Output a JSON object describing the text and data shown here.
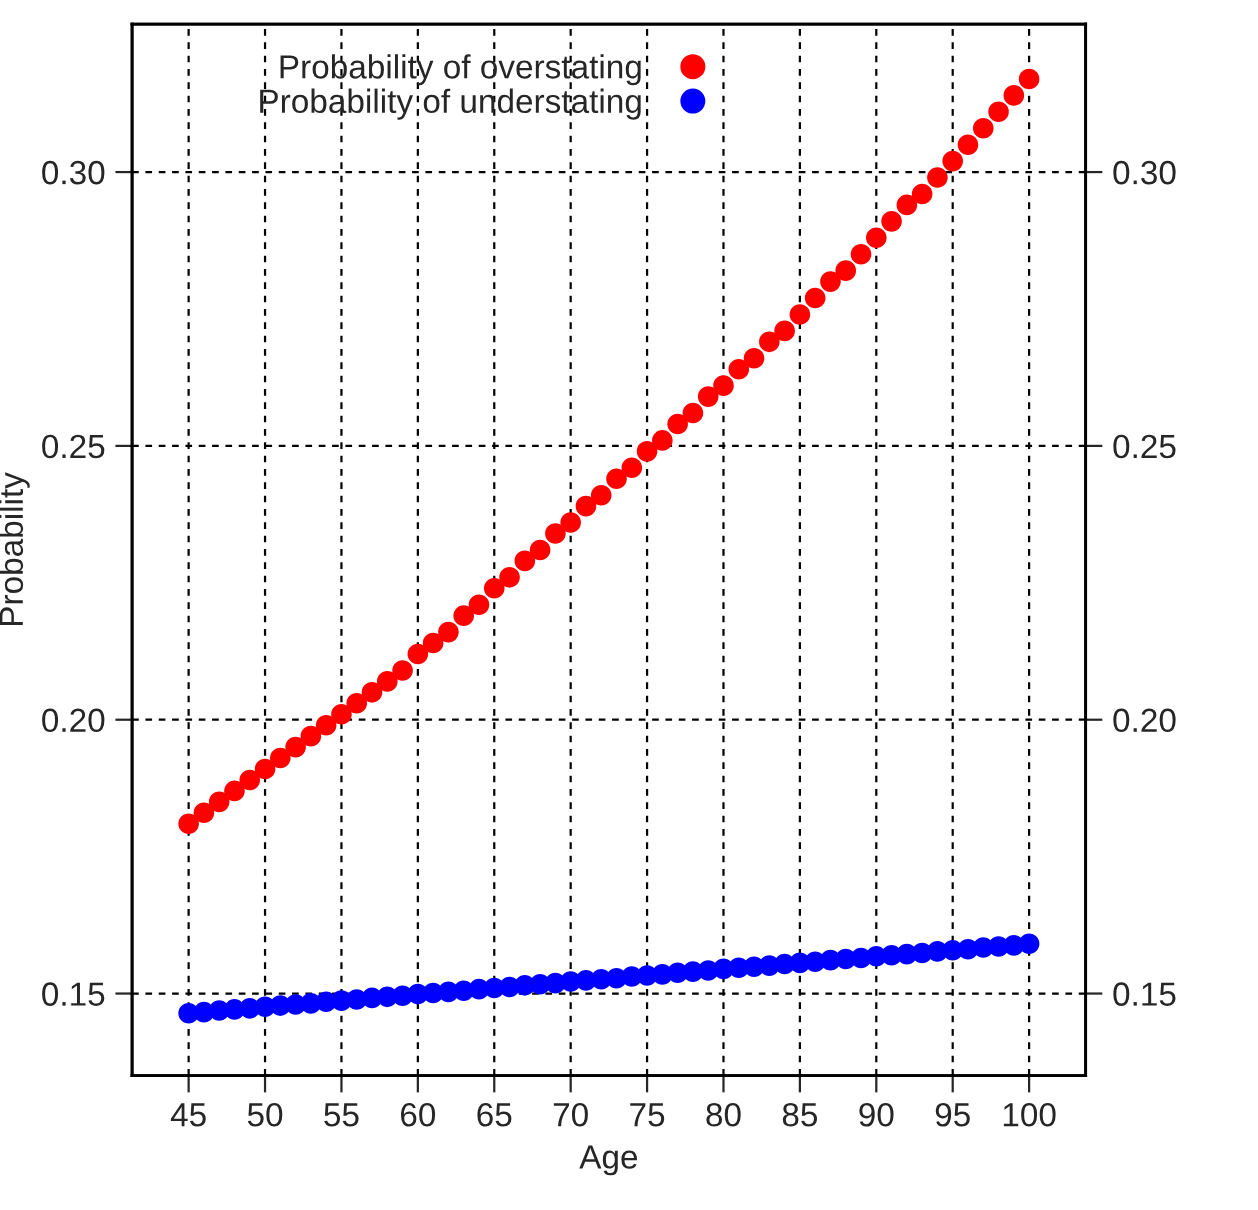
{
  "chart_data": {
    "type": "scatter",
    "xlabel": "Age",
    "ylabel": "Probability",
    "x": [
      45,
      46,
      47,
      48,
      49,
      50,
      51,
      52,
      53,
      54,
      55,
      56,
      57,
      58,
      59,
      60,
      61,
      62,
      63,
      64,
      65,
      66,
      67,
      68,
      69,
      70,
      71,
      72,
      73,
      74,
      75,
      76,
      77,
      78,
      79,
      80,
      81,
      82,
      83,
      84,
      85,
      86,
      87,
      88,
      89,
      90,
      91,
      92,
      93,
      94,
      95,
      96,
      97,
      98,
      99,
      100
    ],
    "series": [
      {
        "name": "Probability of overstating",
        "color": "#ff0000",
        "values": [
          0.181,
          0.183,
          0.185,
          0.187,
          0.189,
          0.191,
          0.193,
          0.195,
          0.197,
          0.199,
          0.201,
          0.203,
          0.205,
          0.207,
          0.209,
          0.212,
          0.214,
          0.216,
          0.219,
          0.221,
          0.224,
          0.226,
          0.229,
          0.231,
          0.234,
          0.236,
          0.239,
          0.241,
          0.244,
          0.246,
          0.249,
          0.251,
          0.254,
          0.256,
          0.259,
          0.261,
          0.264,
          0.266,
          0.269,
          0.271,
          0.274,
          0.277,
          0.28,
          0.282,
          0.285,
          0.288,
          0.291,
          0.294,
          0.296,
          0.299,
          0.302,
          0.305,
          0.308,
          0.311,
          0.314,
          0.317
        ]
      },
      {
        "name": "Probability of understating",
        "color": "#0000ff",
        "values": [
          0.1464,
          0.1466,
          0.1469,
          0.1471,
          0.1473,
          0.1476,
          0.1478,
          0.148,
          0.1482,
          0.1485,
          0.1487,
          0.1489,
          0.1492,
          0.1494,
          0.1496,
          0.1499,
          0.1501,
          0.1503,
          0.1505,
          0.1508,
          0.151,
          0.1512,
          0.1515,
          0.1517,
          0.1519,
          0.1522,
          0.1524,
          0.1526,
          0.1528,
          0.1531,
          0.1533,
          0.1535,
          0.1538,
          0.154,
          0.1542,
          0.1545,
          0.1547,
          0.1549,
          0.1551,
          0.1554,
          0.1556,
          0.1558,
          0.1561,
          0.1563,
          0.1565,
          0.1568,
          0.157,
          0.1572,
          0.1574,
          0.1577,
          0.1579,
          0.1581,
          0.1584,
          0.1586,
          0.1588,
          0.1591
        ]
      }
    ],
    "xlim": [
      41.3,
      103.7
    ],
    "xticks": [
      45,
      50,
      55,
      60,
      65,
      70,
      75,
      80,
      85,
      90,
      95,
      100
    ],
    "ylim": [
      0.135,
      0.327
    ],
    "yticks": [
      0.15,
      {
        "value": 0.2,
        "label": "0.20"
      },
      {
        "value": 0.25,
        "label": "0.25"
      },
      {
        "value": 0.3,
        "label": "0.30"
      }
    ],
    "y2lim": [
      0.135,
      0.327
    ],
    "y2ticks": [
      0.15,
      {
        "value": 0.2,
        "label": "0.20"
      },
      {
        "value": 0.25,
        "label": "0.25"
      },
      {
        "value": 0.3,
        "label": "0.30"
      }
    ],
    "grid": true,
    "legend": "top left",
    "marker": "circle"
  }
}
